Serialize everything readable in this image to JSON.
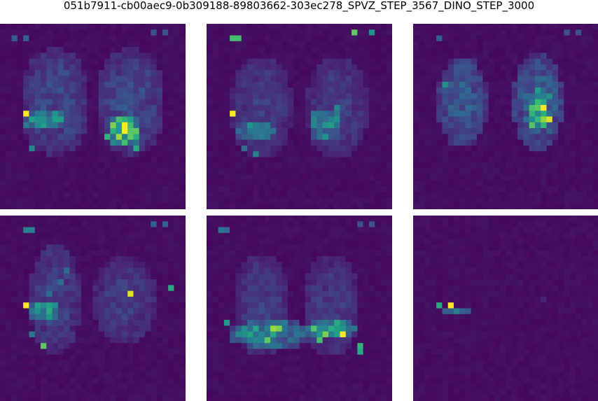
{
  "title": "051b7911-cb00aec9-0b309188-89803662-303ec278_SPVZ_STEP_3567_DINO_STEP_3000",
  "colors": {
    "background": "#440154",
    "low": "#46327e",
    "mid": "#277f8e",
    "high": "#4ac16d",
    "peak": "#fde725"
  },
  "chart_data": [
    {
      "type": "heatmap",
      "grid": [
        32,
        32
      ],
      "vmin": 0,
      "vmax": 1,
      "colormap": "viridis",
      "blobs": [
        [
          [
            9,
            13
          ],
          [
            12,
            19
          ],
          [
            0.18
          ]
        ],
        [
          [
            22,
            13
          ],
          [
            12,
            19
          ],
          [
            0.18
          ]
        ],
        [
          [
            7,
            16
          ],
          [
            8,
            4
          ],
          [
            0.35
          ]
        ],
        [
          [
            21,
            18
          ],
          [
            6,
            6
          ],
          [
            0.55
          ]
        ]
      ],
      "peaks": [
        [
          4,
          15,
          1.0
        ],
        [
          19,
          17,
          0.8
        ],
        [
          20,
          19,
          0.85
        ],
        [
          21,
          20,
          0.7
        ],
        [
          22,
          19,
          0.75
        ],
        [
          23,
          21,
          0.6
        ],
        [
          18,
          19,
          0.65
        ],
        [
          5,
          21,
          0.45
        ],
        [
          2,
          2,
          0.3
        ],
        [
          4,
          2,
          0.3
        ],
        [
          26,
          1,
          0.25
        ],
        [
          28,
          1,
          0.25
        ]
      ]
    },
    {
      "type": "heatmap",
      "grid": [
        32,
        32
      ],
      "vmin": 0,
      "vmax": 1,
      "colormap": "viridis",
      "blobs": [
        [
          [
            9,
            14
          ],
          [
            11,
            18
          ],
          [
            0.14
          ]
        ],
        [
          [
            22,
            14
          ],
          [
            11,
            18
          ],
          [
            0.14
          ]
        ],
        [
          [
            8,
            18
          ],
          [
            8,
            4
          ],
          [
            0.25
          ]
        ],
        [
          [
            20,
            17
          ],
          [
            6,
            6
          ],
          [
            0.3
          ]
        ]
      ],
      "peaks": [
        [
          4,
          15,
          1.0
        ],
        [
          4,
          2,
          0.7
        ],
        [
          5,
          2,
          0.7
        ],
        [
          25,
          1,
          0.75
        ],
        [
          28,
          1,
          0.5
        ],
        [
          22,
          14,
          0.45
        ],
        [
          8,
          22,
          0.45
        ],
        [
          6,
          21,
          0.35
        ]
      ]
    },
    {
      "type": "heatmap",
      "grid": [
        32,
        32
      ],
      "vmin": 0,
      "vmax": 1,
      "colormap": "viridis",
      "blobs": [
        [
          [
            8,
            13
          ],
          [
            9,
            16
          ],
          [
            0.25
          ]
        ],
        [
          [
            21,
            13
          ],
          [
            9,
            17
          ],
          [
            0.28
          ]
        ],
        [
          [
            21,
            15
          ],
          [
            4,
            6
          ],
          [
            0.45
          ]
        ]
      ],
      "peaks": [
        [
          22,
          14,
          1.0
        ],
        [
          23,
          16,
          0.95
        ],
        [
          21,
          11,
          0.55
        ],
        [
          5,
          10,
          0.5
        ],
        [
          23,
          12,
          0.5
        ],
        [
          22,
          17,
          0.5
        ],
        [
          20,
          14,
          0.45
        ],
        [
          4,
          2,
          0.3
        ],
        [
          26,
          1,
          0.25
        ],
        [
          28,
          1,
          0.25
        ]
      ]
    },
    {
      "type": "heatmap",
      "grid": [
        32,
        32
      ],
      "vmin": 0,
      "vmax": 1,
      "colormap": "viridis",
      "blobs": [
        [
          [
            9,
            14
          ],
          [
            9,
            20
          ],
          [
            0.16
          ]
        ],
        [
          [
            21,
            14
          ],
          [
            11,
            16
          ],
          [
            0.14
          ]
        ],
        [
          [
            7,
            16
          ],
          [
            6,
            4
          ],
          [
            0.35
          ]
        ]
      ],
      "peaks": [
        [
          4,
          15,
          1.0
        ],
        [
          22,
          13,
          0.95
        ],
        [
          7,
          22,
          0.75
        ],
        [
          29,
          12,
          0.6
        ],
        [
          4,
          2,
          0.45
        ],
        [
          5,
          2,
          0.45
        ],
        [
          11,
          9,
          0.35
        ],
        [
          10,
          11,
          0.35
        ],
        [
          5,
          20,
          0.4
        ],
        [
          26,
          1,
          0.3
        ],
        [
          28,
          1,
          0.3
        ],
        [
          8,
          13,
          0.35
        ]
      ]
    },
    {
      "type": "heatmap",
      "grid": [
        32,
        32
      ],
      "vmin": 0,
      "vmax": 1,
      "colormap": "viridis",
      "blobs": [
        [
          [
            9,
            15
          ],
          [
            10,
            18
          ],
          [
            0.14
          ]
        ],
        [
          [
            21,
            15
          ],
          [
            10,
            18
          ],
          [
            0.14
          ]
        ],
        [
          [
            11,
            20
          ],
          [
            16,
            5
          ],
          [
            0.35
          ]
        ],
        [
          [
            21,
            19
          ],
          [
            9,
            4
          ],
          [
            0.4
          ]
        ]
      ],
      "peaks": [
        [
          23,
          20,
          1.0
        ],
        [
          11,
          19,
          0.85
        ],
        [
          12,
          19,
          0.8
        ],
        [
          20,
          20,
          0.8
        ],
        [
          10,
          21,
          0.75
        ],
        [
          19,
          21,
          0.7
        ],
        [
          18,
          19,
          0.65
        ],
        [
          3,
          18,
          0.55
        ],
        [
          26,
          22,
          0.65
        ],
        [
          26,
          23,
          0.6
        ],
        [
          2,
          2,
          0.4
        ],
        [
          3,
          2,
          0.35
        ],
        [
          26,
          1,
          0.25
        ],
        [
          28,
          1,
          0.25
        ]
      ]
    },
    {
      "type": "heatmap",
      "grid": [
        32,
        32
      ],
      "vmin": 0,
      "vmax": 1,
      "colormap": "viridis",
      "blobs": [],
      "peaks": [
        [
          6,
          15,
          1.0
        ],
        [
          4,
          15,
          0.6
        ],
        [
          7,
          16,
          0.45
        ],
        [
          5,
          16,
          0.3
        ],
        [
          8,
          16,
          0.3
        ],
        [
          9,
          16,
          0.25
        ],
        [
          6,
          16,
          0.3
        ],
        [
          22,
          14,
          0.1
        ]
      ]
    }
  ]
}
